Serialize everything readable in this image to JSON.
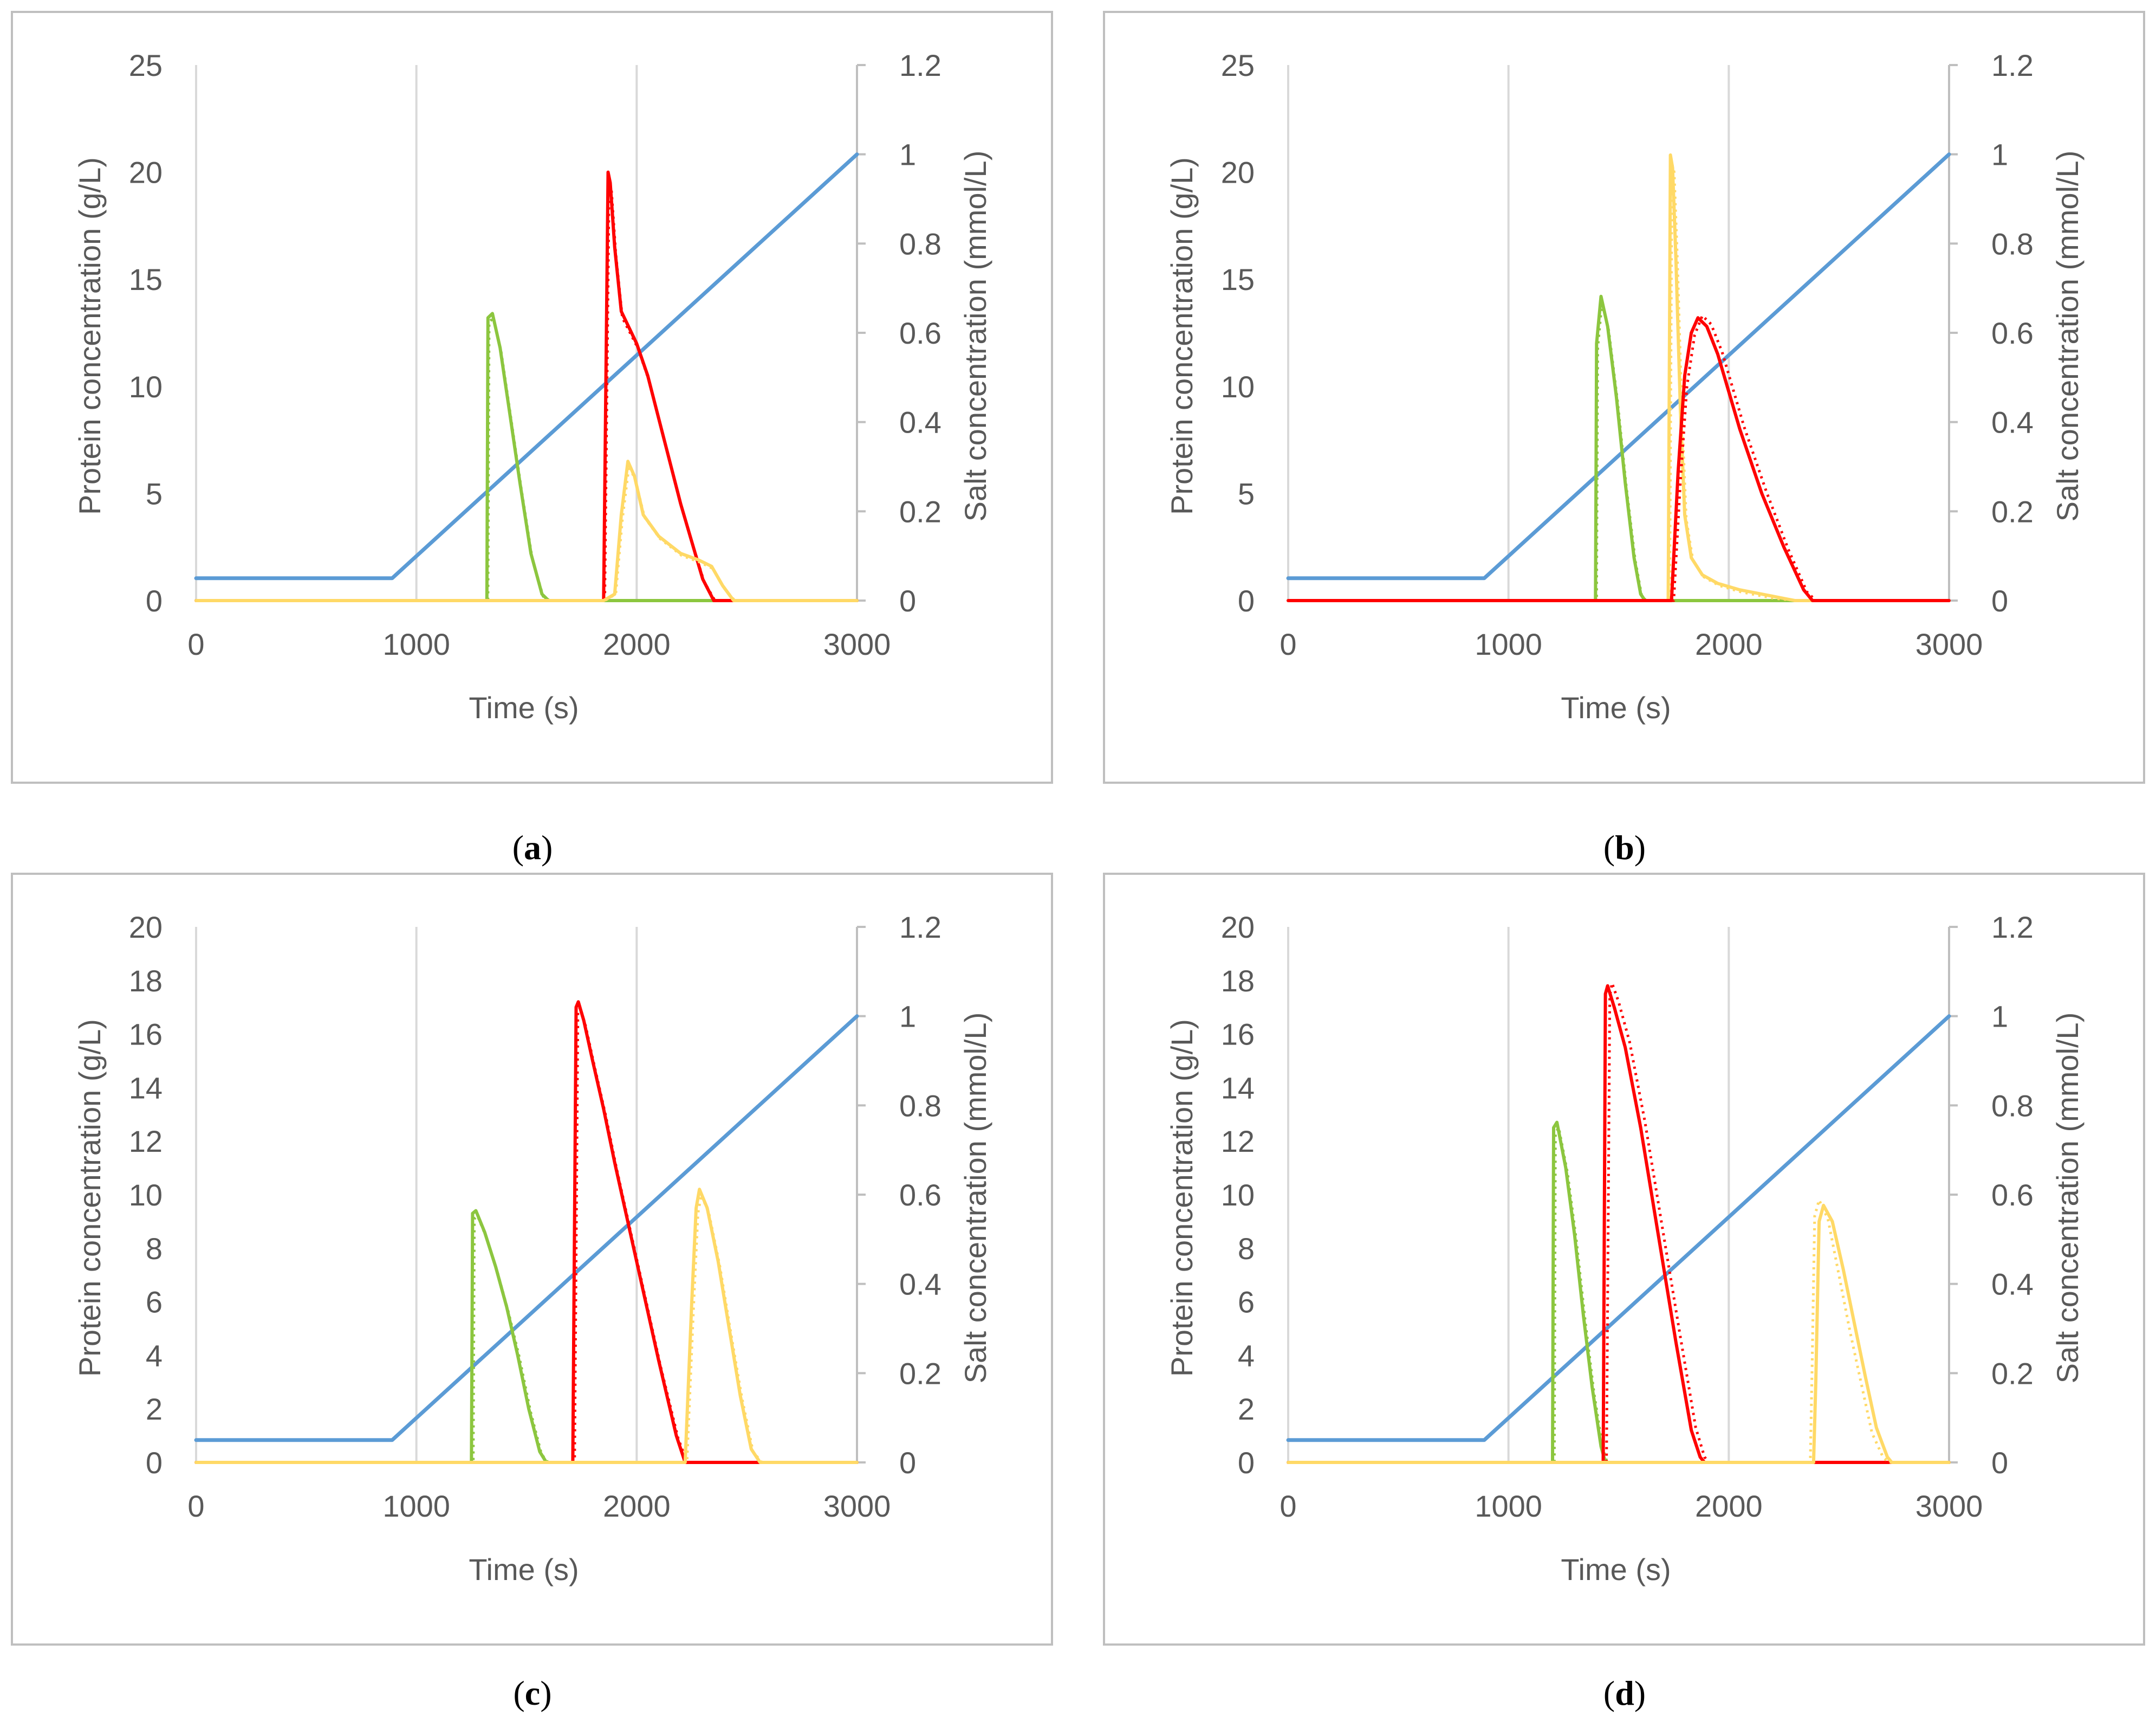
{
  "colors": {
    "salt": "#5b9bd5",
    "green": "#8cc63f",
    "red": "#ff0000",
    "yellow": "#ffd966",
    "grid": "#d9d9d9",
    "frame": "#bfbfbf",
    "text": "#595959"
  },
  "chart_data": [
    {
      "id": "a",
      "type": "line",
      "caption_letter": "a",
      "xlabel": "Time (s)",
      "ylabel": "Protein concentration (g/L)",
      "y2label": "Salt concentration (mmol/L)",
      "xlim": [
        0,
        3000
      ],
      "ylim": [
        0,
        25
      ],
      "y2lim": [
        0,
        1.2
      ],
      "xticks": [
        0,
        1000,
        2000,
        3000
      ],
      "yticks": [
        0,
        5,
        10,
        15,
        20,
        25
      ],
      "y2ticks": [
        0,
        0.2,
        0.4,
        0.6,
        0.8,
        1,
        1.2
      ],
      "gridlines": "vertical",
      "series": [
        {
          "name": "salt",
          "axis": "y2",
          "color_key": "salt",
          "style": "solid",
          "x": [
            0,
            890,
            3000
          ],
          "y": [
            0.05,
            0.05,
            1.0
          ]
        },
        {
          "name": "green-simulated",
          "axis": "y",
          "color_key": "green",
          "style": "solid",
          "x": [
            0,
            1320,
            1325,
            1345,
            1380,
            1420,
            1470,
            1520,
            1570,
            1600,
            3000
          ],
          "y": [
            0,
            0,
            13.2,
            13.4,
            11.8,
            9.0,
            5.5,
            2.2,
            0.3,
            0,
            0
          ]
        },
        {
          "name": "green-experimental",
          "axis": "y",
          "color_key": "green",
          "style": "dotted",
          "x": [
            0,
            1325,
            1330,
            1350,
            1385,
            1425,
            1475,
            1525,
            1575,
            1605,
            3000
          ],
          "y": [
            0,
            0,
            13.0,
            13.2,
            11.6,
            8.8,
            5.3,
            2.0,
            0.2,
            0,
            0
          ]
        },
        {
          "name": "red-simulated",
          "axis": "y",
          "color_key": "red",
          "style": "solid",
          "x": [
            0,
            1850,
            1870,
            1880,
            1900,
            1930,
            2000,
            2050,
            2100,
            2200,
            2300,
            2350,
            3000
          ],
          "y": [
            0,
            0,
            20.0,
            19.5,
            16.5,
            13.5,
            12.0,
            10.5,
            8.5,
            4.5,
            1.0,
            0,
            0
          ]
        },
        {
          "name": "red-experimental",
          "axis": "y",
          "color_key": "red",
          "style": "dotted",
          "x": [
            0,
            1855,
            1875,
            1885,
            1905,
            1935,
            2005,
            2055,
            2105,
            2205,
            2305,
            2355,
            3000
          ],
          "y": [
            0,
            0,
            19.6,
            19.2,
            16.2,
            13.2,
            11.8,
            10.3,
            8.3,
            4.3,
            0.9,
            0,
            0
          ]
        },
        {
          "name": "yellow-simulated",
          "axis": "y",
          "color_key": "yellow",
          "style": "solid",
          "x": [
            0,
            1850,
            1900,
            1930,
            1960,
            1990,
            2030,
            2100,
            2200,
            2280,
            2340,
            2390,
            2440,
            3000
          ],
          "y": [
            0,
            0,
            0.3,
            4.0,
            6.5,
            5.8,
            4.0,
            3.0,
            2.2,
            1.9,
            1.6,
            0.7,
            0,
            0
          ]
        },
        {
          "name": "yellow-experimental",
          "axis": "y",
          "color_key": "yellow",
          "style": "dotted",
          "x": [
            0,
            1855,
            1905,
            1935,
            1965,
            1995,
            2035,
            2105,
            2205,
            2285,
            2345,
            2395,
            2445,
            3000
          ],
          "y": [
            0,
            0,
            0.3,
            3.8,
            6.3,
            5.6,
            3.9,
            2.9,
            2.1,
            1.8,
            1.5,
            0.6,
            0,
            0
          ]
        }
      ]
    },
    {
      "id": "b",
      "type": "line",
      "caption_letter": "b",
      "xlabel": "Time (s)",
      "ylabel": "Protein concentration (g/L)",
      "y2label": "Salt concentration (mmol/L)",
      "xlim": [
        0,
        3000
      ],
      "ylim": [
        0,
        25
      ],
      "y2lim": [
        0,
        1.2
      ],
      "xticks": [
        0,
        1000,
        2000,
        3000
      ],
      "yticks": [
        0,
        5,
        10,
        15,
        20,
        25
      ],
      "y2ticks": [
        0,
        0.2,
        0.4,
        0.6,
        0.8,
        1,
        1.2
      ],
      "gridlines": "vertical",
      "series": [
        {
          "name": "salt",
          "axis": "y2",
          "color_key": "salt",
          "style": "solid",
          "x": [
            0,
            890,
            3000
          ],
          "y": [
            0.05,
            0.05,
            1.0
          ]
        },
        {
          "name": "green-simulated",
          "axis": "y",
          "color_key": "green",
          "style": "solid",
          "x": [
            0,
            1395,
            1400,
            1420,
            1450,
            1490,
            1530,
            1570,
            1600,
            1620,
            3000
          ],
          "y": [
            0,
            0,
            12.0,
            14.2,
            12.8,
            9.5,
            5.5,
            2.0,
            0.3,
            0,
            0
          ]
        },
        {
          "name": "green-experimental",
          "axis": "y",
          "color_key": "green",
          "style": "dotted",
          "x": [
            0,
            1400,
            1405,
            1425,
            1455,
            1495,
            1535,
            1575,
            1605,
            1625,
            3000
          ],
          "y": [
            0,
            0,
            11.8,
            14.0,
            12.6,
            9.3,
            5.3,
            1.9,
            0.2,
            0,
            0
          ]
        },
        {
          "name": "yellow-simulated",
          "axis": "y",
          "color_key": "yellow",
          "style": "solid",
          "x": [
            0,
            1725,
            1735,
            1745,
            1760,
            1780,
            1800,
            1830,
            1880,
            1950,
            2050,
            2200,
            2300,
            3000
          ],
          "y": [
            0,
            0,
            20.8,
            20.2,
            16.0,
            9.0,
            4.0,
            2.0,
            1.2,
            0.8,
            0.5,
            0.2,
            0,
            0
          ]
        },
        {
          "name": "yellow-experimental",
          "axis": "y",
          "color_key": "yellow",
          "style": "dotted",
          "x": [
            0,
            1732,
            1742,
            1752,
            1767,
            1787,
            1807,
            1837,
            1887,
            1957,
            2057,
            2207,
            2307,
            3000
          ],
          "y": [
            0,
            0,
            20.4,
            20.0,
            15.8,
            8.8,
            3.8,
            1.9,
            1.1,
            0.7,
            0.4,
            0.1,
            0,
            0
          ]
        },
        {
          "name": "red-simulated",
          "axis": "y",
          "color_key": "red",
          "style": "solid",
          "x": [
            0,
            1740,
            1770,
            1800,
            1830,
            1860,
            1900,
            1950,
            2050,
            2150,
            2250,
            2340,
            2380,
            3000
          ],
          "y": [
            0,
            0,
            6.0,
            10.5,
            12.5,
            13.2,
            12.8,
            11.5,
            8.0,
            5.0,
            2.5,
            0.5,
            0,
            0
          ]
        },
        {
          "name": "red-experimental",
          "axis": "y",
          "color_key": "red",
          "style": "dotted",
          "x": [
            0,
            1750,
            1780,
            1810,
            1845,
            1880,
            1920,
            1970,
            2070,
            2170,
            2270,
            2355,
            2395,
            3000
          ],
          "y": [
            0,
            0,
            5.5,
            10.0,
            12.4,
            13.3,
            12.9,
            11.6,
            8.1,
            5.1,
            2.4,
            0.4,
            0,
            0
          ]
        }
      ]
    },
    {
      "id": "c",
      "type": "line",
      "caption_letter": "c",
      "xlabel": "Time (s)",
      "ylabel": "Protein concentration (g/L)",
      "y2label": "Salt concentration (mmol/L)",
      "xlim": [
        0,
        3000
      ],
      "ylim": [
        0,
        20
      ],
      "y2lim": [
        0,
        1.2
      ],
      "xticks": [
        0,
        1000,
        2000,
        3000
      ],
      "yticks": [
        0,
        2,
        4,
        6,
        8,
        10,
        12,
        14,
        16,
        18,
        20
      ],
      "y2ticks": [
        0,
        0.2,
        0.4,
        0.6,
        0.8,
        1,
        1.2
      ],
      "gridlines": "vertical",
      "series": [
        {
          "name": "salt",
          "axis": "y2",
          "color_key": "salt",
          "style": "solid",
          "x": [
            0,
            890,
            3000
          ],
          "y": [
            0.05,
            0.05,
            1.0
          ]
        },
        {
          "name": "green-simulated",
          "axis": "y",
          "color_key": "green",
          "style": "solid",
          "x": [
            0,
            1250,
            1255,
            1270,
            1310,
            1360,
            1410,
            1460,
            1510,
            1560,
            1590,
            3000
          ],
          "y": [
            0,
            0,
            9.3,
            9.4,
            8.6,
            7.3,
            5.8,
            4.0,
            2.0,
            0.4,
            0,
            0
          ]
        },
        {
          "name": "green-experimental",
          "axis": "y",
          "color_key": "green",
          "style": "dotted",
          "x": [
            0,
            1258,
            1263,
            1278,
            1318,
            1368,
            1418,
            1468,
            1518,
            1568,
            1598,
            3000
          ],
          "y": [
            0,
            0,
            9.1,
            9.2,
            8.4,
            7.1,
            5.6,
            3.9,
            1.9,
            0.3,
            0,
            0
          ]
        },
        {
          "name": "red-simulated",
          "axis": "y",
          "color_key": "red",
          "style": "solid",
          "x": [
            0,
            1710,
            1725,
            1735,
            1760,
            1800,
            1850,
            1900,
            2000,
            2100,
            2180,
            2220,
            3000
          ],
          "y": [
            0,
            0,
            17.0,
            17.2,
            16.5,
            15.0,
            13.2,
            11.2,
            7.5,
            3.8,
            1.0,
            0,
            0
          ]
        },
        {
          "name": "red-experimental",
          "axis": "y",
          "color_key": "red",
          "style": "dotted",
          "x": [
            0,
            1718,
            1733,
            1743,
            1768,
            1808,
            1858,
            1908,
            2008,
            2108,
            2188,
            2228,
            3000
          ],
          "y": [
            0,
            0,
            16.8,
            17.0,
            16.3,
            14.8,
            13.0,
            11.0,
            7.3,
            3.6,
            0.9,
            0,
            0
          ]
        },
        {
          "name": "yellow-simulated",
          "axis": "y",
          "color_key": "yellow",
          "style": "solid",
          "x": [
            0,
            2220,
            2250,
            2270,
            2285,
            2320,
            2370,
            2420,
            2470,
            2520,
            2560,
            3000
          ],
          "y": [
            0,
            0,
            6.0,
            9.5,
            10.2,
            9.5,
            7.5,
            5.0,
            2.5,
            0.5,
            0,
            0
          ]
        },
        {
          "name": "yellow-experimental",
          "axis": "y",
          "color_key": "yellow",
          "style": "dotted",
          "x": [
            0,
            2228,
            2258,
            2278,
            2293,
            2328,
            2378,
            2428,
            2478,
            2528,
            2568,
            3000
          ],
          "y": [
            0,
            0,
            5.8,
            9.3,
            10.0,
            9.3,
            7.3,
            4.8,
            2.4,
            0.4,
            0,
            0
          ]
        }
      ]
    },
    {
      "id": "d",
      "type": "line",
      "caption_letter": "d",
      "xlabel": "Time (s)",
      "ylabel": "Protein concentration (g/L)",
      "y2label": "Salt concentration (mmol/L)",
      "xlim": [
        0,
        3000
      ],
      "ylim": [
        0,
        20
      ],
      "y2lim": [
        0,
        1.2
      ],
      "xticks": [
        0,
        1000,
        2000,
        3000
      ],
      "yticks": [
        0,
        2,
        4,
        6,
        8,
        10,
        12,
        14,
        16,
        18,
        20
      ],
      "y2ticks": [
        0,
        0.2,
        0.4,
        0.6,
        0.8,
        1,
        1.2
      ],
      "gridlines": "vertical",
      "series": [
        {
          "name": "salt",
          "axis": "y2",
          "color_key": "salt",
          "style": "solid",
          "x": [
            0,
            890,
            3000
          ],
          "y": [
            0.05,
            0.05,
            1.0
          ]
        },
        {
          "name": "green-simulated",
          "axis": "y",
          "color_key": "green",
          "style": "solid",
          "x": [
            0,
            1200,
            1205,
            1220,
            1260,
            1300,
            1340,
            1380,
            1420,
            1440,
            3000
          ],
          "y": [
            0,
            0,
            12.5,
            12.7,
            11.0,
            8.5,
            5.5,
            2.8,
            0.6,
            0,
            0
          ]
        },
        {
          "name": "green-experimental",
          "axis": "y",
          "color_key": "green",
          "style": "dotted",
          "x": [
            0,
            1208,
            1213,
            1228,
            1268,
            1308,
            1348,
            1388,
            1428,
            1448,
            3000
          ],
          "y": [
            0,
            0,
            12.3,
            12.5,
            10.8,
            8.3,
            5.3,
            2.6,
            0.5,
            0,
            0
          ]
        },
        {
          "name": "red-simulated",
          "axis": "y",
          "color_key": "red",
          "style": "solid",
          "x": [
            0,
            1430,
            1440,
            1450,
            1480,
            1530,
            1600,
            1680,
            1760,
            1830,
            1870,
            1890,
            3000
          ],
          "y": [
            0,
            0,
            17.5,
            17.8,
            17.0,
            15.5,
            12.5,
            8.5,
            4.5,
            1.2,
            0.2,
            0,
            0
          ]
        },
        {
          "name": "red-experimental",
          "axis": "y",
          "color_key": "red",
          "style": "dotted",
          "x": [
            0,
            1445,
            1460,
            1470,
            1500,
            1550,
            1620,
            1700,
            1780,
            1850,
            1890,
            1910,
            3000
          ],
          "y": [
            0,
            0,
            17.4,
            17.9,
            17.2,
            15.7,
            12.7,
            8.7,
            4.7,
            1.3,
            0.2,
            0,
            0
          ]
        },
        {
          "name": "yellow-simulated",
          "axis": "y",
          "color_key": "yellow",
          "style": "solid",
          "x": [
            0,
            2385,
            2395,
            2410,
            2430,
            2470,
            2520,
            2570,
            2620,
            2670,
            2720,
            2740,
            3000
          ],
          "y": [
            0,
            0,
            3.0,
            9.0,
            9.6,
            9.0,
            7.2,
            5.2,
            3.2,
            1.3,
            0.2,
            0,
            0
          ]
        },
        {
          "name": "yellow-experimental",
          "axis": "y",
          "color_key": "yellow",
          "style": "dotted",
          "x": [
            0,
            2370,
            2378,
            2390,
            2410,
            2450,
            2500,
            2550,
            2600,
            2650,
            2700,
            2725,
            3000
          ],
          "y": [
            0,
            0,
            3.5,
            9.2,
            9.8,
            9.1,
            7.0,
            4.9,
            3.0,
            1.1,
            0.2,
            0,
            0
          ]
        }
      ]
    }
  ]
}
